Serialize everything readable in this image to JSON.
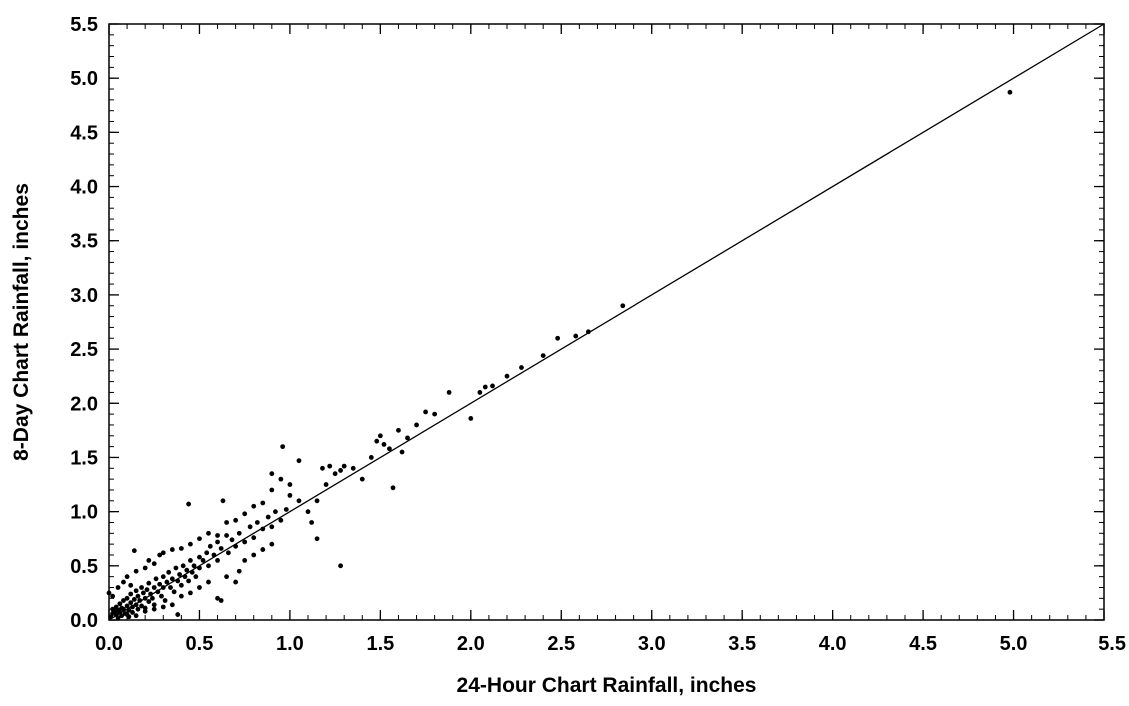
{
  "chart_data": {
    "type": "scatter",
    "title": "",
    "xlabel": "24-Hour Chart Rainfall, inches",
    "ylabel": "8-Day Chart Rainfall, inches",
    "xlim": [
      0,
      5.5
    ],
    "ylim": [
      0,
      5.5
    ],
    "grid": false,
    "x_ticks": [
      "0.0",
      "0.5",
      "1.0",
      "1.5",
      "2.0",
      "2.5",
      "3.0",
      "3.5",
      "4.0",
      "4.5",
      "5.0",
      "5.5"
    ],
    "y_ticks": [
      "0.0",
      "0.5",
      "1.0",
      "1.5",
      "2.0",
      "2.5",
      "3.0",
      "3.5",
      "4.0",
      "4.5",
      "5.0",
      "5.5"
    ],
    "colors": {
      "marker": "#000000",
      "line": "#000000"
    },
    "reference_line": {
      "from": [
        0,
        0
      ],
      "to": [
        5.5,
        5.5
      ]
    },
    "series": [
      {
        "points": [
          [
            0.01,
            0.03
          ],
          [
            0.02,
            0.06
          ],
          [
            0.02,
            0.1
          ],
          [
            0.03,
            0.08
          ],
          [
            0.04,
            0.05
          ],
          [
            0.04,
            0.12
          ],
          [
            0.05,
            0.09
          ],
          [
            0.05,
            0.02
          ],
          [
            0.06,
            0.15
          ],
          [
            0.06,
            0.07
          ],
          [
            0.07,
            0.11
          ],
          [
            0.07,
            0.04
          ],
          [
            0.08,
            0.1
          ],
          [
            0.08,
            0.18
          ],
          [
            0.09,
            0.06
          ],
          [
            0.1,
            0.13
          ],
          [
            0.1,
            0.2
          ],
          [
            0.11,
            0.09
          ],
          [
            0.11,
            0.03
          ],
          [
            0.12,
            0.16
          ],
          [
            0.12,
            0.24
          ],
          [
            0.13,
            0.12
          ],
          [
            0.13,
            0.07
          ],
          [
            0.14,
            0.19
          ],
          [
            0.15,
            0.14
          ],
          [
            0.15,
            0.27
          ],
          [
            0.16,
            0.1
          ],
          [
            0.16,
            0.22
          ],
          [
            0.17,
            0.18
          ],
          [
            0.18,
            0.3
          ],
          [
            0.18,
            0.13
          ],
          [
            0.19,
            0.25
          ],
          [
            0.2,
            0.2
          ],
          [
            0.2,
            0.11
          ],
          [
            0.21,
            0.28
          ],
          [
            0.22,
            0.17
          ],
          [
            0.22,
            0.34
          ],
          [
            0.23,
            0.24
          ],
          [
            0.24,
            0.2
          ],
          [
            0.25,
            0.3
          ],
          [
            0.25,
            0.14
          ],
          [
            0.26,
            0.38
          ],
          [
            0.27,
            0.26
          ],
          [
            0.28,
            0.33
          ],
          [
            0.29,
            0.22
          ],
          [
            0.3,
            0.4
          ],
          [
            0.3,
            0.3
          ],
          [
            0.31,
            0.18
          ],
          [
            0.32,
            0.35
          ],
          [
            0.33,
            0.44
          ],
          [
            0.34,
            0.3
          ],
          [
            0.35,
            0.38
          ],
          [
            0.36,
            0.26
          ],
          [
            0.37,
            0.48
          ],
          [
            0.38,
            0.36
          ],
          [
            0.39,
            0.42
          ],
          [
            0.4,
            0.32
          ],
          [
            0.41,
            0.5
          ],
          [
            0.42,
            0.4
          ],
          [
            0.43,
            0.46
          ],
          [
            0.44,
            0.36
          ],
          [
            0.45,
            0.55
          ],
          [
            0.46,
            0.44
          ],
          [
            0.47,
            0.5
          ],
          [
            0.48,
            0.4
          ],
          [
            0.5,
            0.58
          ],
          [
            0.5,
            0.48
          ],
          [
            0.52,
            0.55
          ],
          [
            0.54,
            0.62
          ],
          [
            0.55,
            0.5
          ],
          [
            0.56,
            0.68
          ],
          [
            0.58,
            0.6
          ],
          [
            0.6,
            0.72
          ],
          [
            0.6,
            0.55
          ],
          [
            0.62,
            0.66
          ],
          [
            0.65,
            0.78
          ],
          [
            0.66,
            0.62
          ],
          [
            0.68,
            0.74
          ],
          [
            0.7,
            0.68
          ],
          [
            0.72,
            0.8
          ],
          [
            0.75,
            0.72
          ],
          [
            0.78,
            0.86
          ],
          [
            0.8,
            0.76
          ],
          [
            0.82,
            0.9
          ],
          [
            0.85,
            0.84
          ],
          [
            0.88,
            0.95
          ],
          [
            0.9,
            0.86
          ],
          [
            0.92,
            1.0
          ],
          [
            0.95,
            0.92
          ],
          [
            0.98,
            1.02
          ],
          [
            0.0,
            0.25
          ],
          [
            0.02,
            0.22
          ],
          [
            0.05,
            0.3
          ],
          [
            0.08,
            0.35
          ],
          [
            0.1,
            0.4
          ],
          [
            0.12,
            0.32
          ],
          [
            0.14,
            0.64
          ],
          [
            0.15,
            0.45
          ],
          [
            0.2,
            0.48
          ],
          [
            0.22,
            0.55
          ],
          [
            0.25,
            0.52
          ],
          [
            0.28,
            0.6
          ],
          [
            0.3,
            0.62
          ],
          [
            0.35,
            0.65
          ],
          [
            0.4,
            0.66
          ],
          [
            0.45,
            0.7
          ],
          [
            0.5,
            0.75
          ],
          [
            0.55,
            0.8
          ],
          [
            0.6,
            0.78
          ],
          [
            0.65,
            0.9
          ],
          [
            0.7,
            0.92
          ],
          [
            0.75,
            0.98
          ],
          [
            0.8,
            1.05
          ],
          [
            0.85,
            1.08
          ],
          [
            0.9,
            1.2
          ],
          [
            0.9,
            1.35
          ],
          [
            0.95,
            1.3
          ],
          [
            1.0,
            1.25
          ],
          [
            1.0,
            1.15
          ],
          [
            1.05,
            1.1
          ],
          [
            0.1,
            0.05
          ],
          [
            0.15,
            0.04
          ],
          [
            0.2,
            0.08
          ],
          [
            0.25,
            0.1
          ],
          [
            0.3,
            0.12
          ],
          [
            0.35,
            0.14
          ],
          [
            0.38,
            0.05
          ],
          [
            0.4,
            0.22
          ],
          [
            0.45,
            0.25
          ],
          [
            0.5,
            0.3
          ],
          [
            0.55,
            0.35
          ],
          [
            0.6,
            0.2
          ],
          [
            0.62,
            0.18
          ],
          [
            0.65,
            0.4
          ],
          [
            0.7,
            0.35
          ],
          [
            0.72,
            0.45
          ],
          [
            0.75,
            0.55
          ],
          [
            0.8,
            0.6
          ],
          [
            0.85,
            0.65
          ],
          [
            0.9,
            0.7
          ],
          [
            0.44,
            1.07
          ],
          [
            0.63,
            1.1
          ],
          [
            0.96,
            1.6
          ],
          [
            1.05,
            1.47
          ],
          [
            1.1,
            1.0
          ],
          [
            1.12,
            0.9
          ],
          [
            1.15,
            0.75
          ],
          [
            1.15,
            1.1
          ],
          [
            1.2,
            1.25
          ],
          [
            1.18,
            1.4
          ],
          [
            1.22,
            1.42
          ],
          [
            1.25,
            1.35
          ],
          [
            1.28,
            1.38
          ],
          [
            1.28,
            0.5
          ],
          [
            1.3,
            1.42
          ],
          [
            1.35,
            1.4
          ],
          [
            1.4,
            1.3
          ],
          [
            1.45,
            1.5
          ],
          [
            1.48,
            1.65
          ],
          [
            1.5,
            1.7
          ],
          [
            1.52,
            1.62
          ],
          [
            1.55,
            1.58
          ],
          [
            1.57,
            1.22
          ],
          [
            1.6,
            1.75
          ],
          [
            1.62,
            1.55
          ],
          [
            1.65,
            1.68
          ],
          [
            1.7,
            1.8
          ],
          [
            1.75,
            1.92
          ],
          [
            1.8,
            1.9
          ],
          [
            1.88,
            2.1
          ],
          [
            2.0,
            1.86
          ],
          [
            2.05,
            2.1
          ],
          [
            2.08,
            2.15
          ],
          [
            2.12,
            2.16
          ],
          [
            2.2,
            2.25
          ],
          [
            2.28,
            2.33
          ],
          [
            2.4,
            2.44
          ],
          [
            2.48,
            2.6
          ],
          [
            2.58,
            2.62
          ],
          [
            2.65,
            2.66
          ],
          [
            2.84,
            2.9
          ],
          [
            4.98,
            4.87
          ]
        ]
      }
    ]
  }
}
